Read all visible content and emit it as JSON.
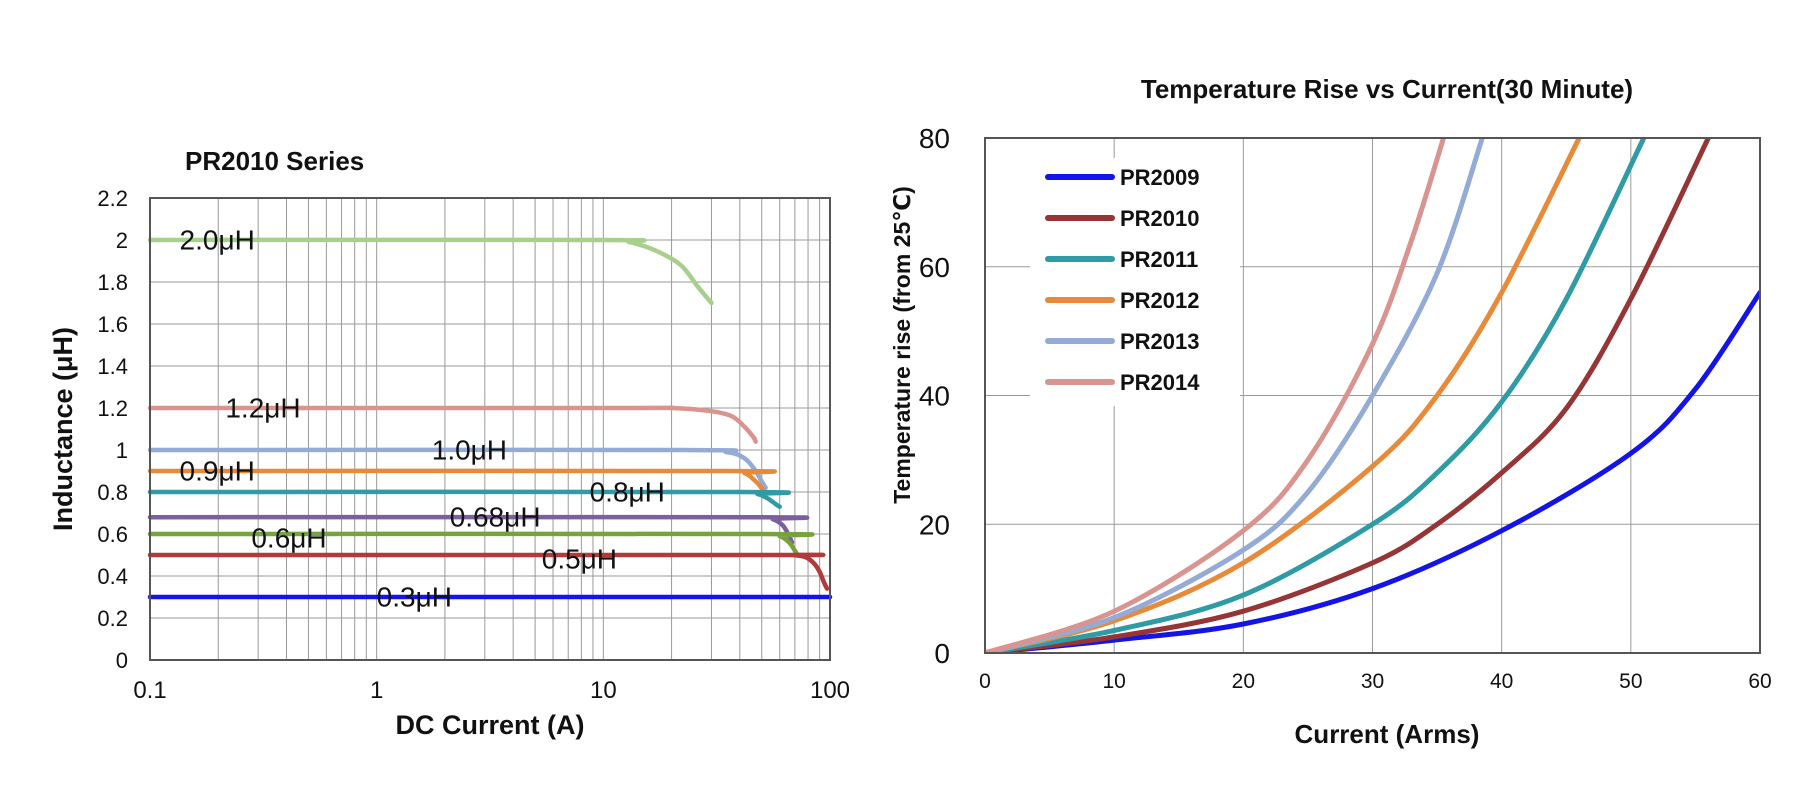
{
  "chart_data": [
    {
      "type": "line",
      "title": "PR2010 Series",
      "xlabel": "DC Current (A)",
      "ylabel": "Inductance (μH)",
      "xscale": "log",
      "xlim": [
        0.1,
        100
      ],
      "ylim": [
        0,
        2.2
      ],
      "x_tick_labels": [
        "0.1",
        "1",
        "10",
        "100"
      ],
      "y_tick_labels": [
        "0",
        "0.2",
        "0.4",
        "0.6",
        "0.8",
        "1",
        "1.2",
        "1.4",
        "1.6",
        "1.8",
        "2",
        "2.2"
      ],
      "grid": true,
      "series": [
        {
          "name": "2.0μH",
          "color": "#a9cf8c",
          "points": [
            [
              0.1,
              2.0
            ],
            [
              10,
              2.0
            ],
            [
              13,
              1.99
            ],
            [
              17,
              1.95
            ],
            [
              22,
              1.88
            ],
            [
              26,
              1.78
            ],
            [
              30,
              1.7
            ]
          ]
        },
        {
          "name": "1.2μH",
          "color": "#d99490",
          "points": [
            [
              0.1,
              1.2
            ],
            [
              12,
              1.2
            ],
            [
              20,
              1.2
            ],
            [
              30,
              1.185
            ],
            [
              37,
              1.16
            ],
            [
              42,
              1.11
            ],
            [
              46,
              1.06
            ],
            [
              47,
              1.04
            ]
          ]
        },
        {
          "name": "1.0μH",
          "color": "#94abd6",
          "points": [
            [
              0.1,
              1.0
            ],
            [
              22,
              1.0
            ],
            [
              35,
              0.99
            ],
            [
              42,
              0.96
            ],
            [
              47,
              0.9
            ],
            [
              50,
              0.85
            ],
            [
              52,
              0.82
            ]
          ]
        },
        {
          "name": "0.9μH",
          "color": "#e78b3a",
          "points": [
            [
              0.1,
              0.9
            ],
            [
              35,
              0.9
            ],
            [
              42,
              0.89
            ],
            [
              46,
              0.86
            ],
            [
              49,
              0.83
            ],
            [
              51,
              0.8
            ]
          ]
        },
        {
          "name": "0.8μH",
          "color": "#2f9ba5",
          "points": [
            [
              0.1,
              0.8
            ],
            [
              40,
              0.8
            ],
            [
              48,
              0.79
            ],
            [
              53,
              0.77
            ],
            [
              58,
              0.74
            ],
            [
              60,
              0.73
            ]
          ]
        },
        {
          "name": "0.68μH",
          "color": "#7d5fa0",
          "points": [
            [
              0.1,
              0.68
            ],
            [
              48,
              0.68
            ],
            [
              56,
              0.67
            ],
            [
              62,
              0.64
            ],
            [
              66,
              0.59
            ],
            [
              68,
              0.56
            ]
          ]
        },
        {
          "name": "0.6μH",
          "color": "#77a33f",
          "points": [
            [
              0.1,
              0.6
            ],
            [
              50,
              0.6
            ],
            [
              60,
              0.59
            ],
            [
              66,
              0.56
            ],
            [
              70,
              0.52
            ],
            [
              72,
              0.5
            ]
          ]
        },
        {
          "name": "0.5μH",
          "color": "#b33a3a",
          "points": [
            [
              0.1,
              0.5
            ],
            [
              55,
              0.5
            ],
            [
              68,
              0.5
            ],
            [
              78,
              0.49
            ],
            [
              85,
              0.46
            ],
            [
              90,
              0.42
            ],
            [
              94,
              0.37
            ],
            [
              97,
              0.34
            ]
          ]
        },
        {
          "name": "0.3μH",
          "color": "#1414e6",
          "points": [
            [
              0.1,
              0.3
            ],
            [
              100,
              0.3
            ]
          ]
        }
      ],
      "curve_labels": [
        {
          "text": "2.0μH"
        },
        {
          "text": "1.2μH"
        },
        {
          "text": "1.0μH"
        },
        {
          "text": "0.9μH"
        },
        {
          "text": "0.8μH"
        },
        {
          "text": "0.68μH"
        },
        {
          "text": "0.6μH"
        },
        {
          "text": "0.5μH"
        },
        {
          "text": "0.3μH"
        }
      ]
    },
    {
      "type": "line",
      "title": "Temperature Rise vs Current(30 Minute)",
      "xlabel": "Current (Arms)",
      "ylabel": "Temperature rise (from 25℃)",
      "xlim": [
        0,
        60
      ],
      "ylim": [
        0,
        80
      ],
      "x_tick_labels": [
        "0",
        "10",
        "20",
        "30",
        "40",
        "50",
        "60"
      ],
      "y_tick_labels": [
        "0",
        "20",
        "40",
        "60",
        "80"
      ],
      "grid": true,
      "legend_position": "top-left",
      "series": [
        {
          "name": "PR2009",
          "color": "#1414e6",
          "points": [
            [
              0,
              0
            ],
            [
              10,
              2
            ],
            [
              20,
              4.5
            ],
            [
              30,
              10
            ],
            [
              40,
              19
            ],
            [
              50,
              31
            ],
            [
              55,
              41
            ],
            [
              60,
              56
            ]
          ]
        },
        {
          "name": "PR2010",
          "color": "#953535",
          "points": [
            [
              0,
              0
            ],
            [
              10,
              2.5
            ],
            [
              20,
              6.5
            ],
            [
              30,
              14
            ],
            [
              35,
              20
            ],
            [
              40,
              28
            ],
            [
              45,
              38
            ],
            [
              50,
              55
            ],
            [
              56,
              80
            ]
          ]
        },
        {
          "name": "PR2011",
          "color": "#2f9ba5",
          "points": [
            [
              0,
              0
            ],
            [
              10,
              3.5
            ],
            [
              20,
              9
            ],
            [
              30,
              20
            ],
            [
              35,
              28
            ],
            [
              40,
              39
            ],
            [
              45,
              55
            ],
            [
              51,
              80
            ]
          ]
        },
        {
          "name": "PR2012",
          "color": "#e78b3a",
          "points": [
            [
              0,
              0
            ],
            [
              10,
              5
            ],
            [
              20,
              14
            ],
            [
              30,
              29
            ],
            [
              35,
              40
            ],
            [
              40,
              56
            ],
            [
              46,
              80
            ]
          ]
        },
        {
          "name": "PR2013",
          "color": "#94abd6",
          "points": [
            [
              0,
              0
            ],
            [
              10,
              5.5
            ],
            [
              20,
              16
            ],
            [
              25,
              25
            ],
            [
              30,
              40
            ],
            [
              35,
              59
            ],
            [
              38.5,
              80
            ]
          ]
        },
        {
          "name": "PR2014",
          "color": "#d99490",
          "points": [
            [
              0,
              0
            ],
            [
              10,
              6.5
            ],
            [
              20,
              19
            ],
            [
              25,
              30
            ],
            [
              30,
              48
            ],
            [
              33,
              64
            ],
            [
              35.5,
              80
            ]
          ]
        }
      ]
    }
  ]
}
